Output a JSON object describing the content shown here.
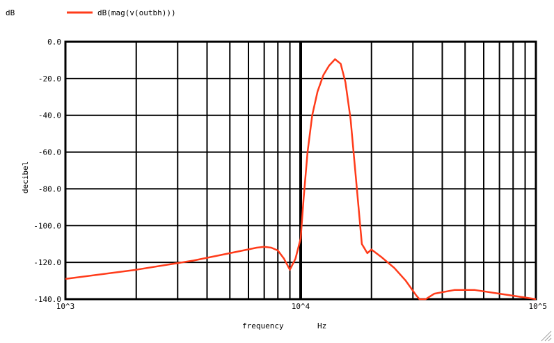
{
  "chart_data": {
    "type": "line",
    "y_unit_label": "dB",
    "ylabel": "decibel",
    "xlabel": "frequency",
    "x_unit": "Hz",
    "x_scale": "log",
    "xlim": [
      1000,
      100000
    ],
    "ylim": [
      -140,
      0
    ],
    "grid": true,
    "legend_position": "top-left",
    "x_ticks": [
      {
        "value": 1000,
        "label": "10^3"
      },
      {
        "value": 10000,
        "label": "10^4"
      },
      {
        "value": 100000,
        "label": "10^5"
      }
    ],
    "y_ticks": [
      {
        "value": 0,
        "label": "0.0"
      },
      {
        "value": -20,
        "label": "-20.0"
      },
      {
        "value": -40,
        "label": "-40.0"
      },
      {
        "value": -60,
        "label": "-60.0"
      },
      {
        "value": -80,
        "label": "-80.0"
      },
      {
        "value": -100,
        "label": "-100.0"
      },
      {
        "value": -120,
        "label": "-120.0"
      },
      {
        "value": -140,
        "label": "-140.0"
      }
    ],
    "series": [
      {
        "name": "dB(mag(v(outbh)))",
        "color": "#ff3b1a",
        "x": [
          1000,
          2000,
          3500,
          5000,
          6500,
          7000,
          7500,
          8000,
          8500,
          9000,
          9500,
          10000,
          10300,
          10700,
          11200,
          11800,
          12500,
          13200,
          14000,
          14800,
          15500,
          16300,
          17200,
          18200,
          19200,
          20000,
          22000,
          25000,
          28000,
          31000,
          32000,
          34000,
          37000,
          45000,
          55000,
          70000,
          100000
        ],
        "y": [
          -129,
          -124,
          -119,
          -115,
          -112,
          -111.5,
          -112,
          -113.5,
          -118,
          -124,
          -118,
          -107,
          -85,
          -60,
          -40,
          -27,
          -18,
          -13,
          -9.5,
          -12,
          -22,
          -42,
          -75,
          -110,
          -115,
          -113,
          -117,
          -123,
          -130,
          -138,
          -140,
          -140,
          -137,
          -135,
          -135,
          -137,
          -140
        ]
      }
    ]
  }
}
